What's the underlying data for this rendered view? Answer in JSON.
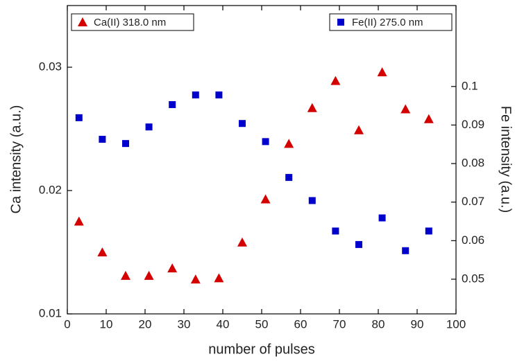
{
  "chart_data": {
    "type": "scatter",
    "xlabel": "number of pulses",
    "ylabel": "Ca intensity (a.u.)",
    "y2label": "Fe intensity (a.u.)",
    "x": [
      3,
      9,
      15,
      21,
      27,
      33,
      39,
      45,
      51,
      57,
      63,
      69,
      75,
      81,
      87,
      93
    ],
    "series": [
      {
        "name": "Ca(II) 318.0 nm",
        "color": "#d40000",
        "marker": "triangle",
        "axis": "y",
        "values": [
          0.0175,
          0.015,
          0.0131,
          0.0131,
          0.0137,
          0.0128,
          0.0129,
          0.0158,
          0.0193,
          0.0238,
          0.0267,
          0.0289,
          0.0249,
          0.0296,
          0.0266,
          0.0258
        ]
      },
      {
        "name": "Fe(II) 275.0 nm",
        "color": "#0000cc",
        "marker": "square",
        "axis": "y2",
        "values": [
          0.0919,
          0.0863,
          0.0852,
          0.0895,
          0.0953,
          0.0978,
          0.0978,
          0.0904,
          0.0857,
          0.0764,
          0.0704,
          0.0625,
          0.059,
          0.0659,
          0.0574,
          0.0625
        ]
      }
    ],
    "xlim": [
      0,
      100
    ],
    "xticks": [
      0,
      10,
      20,
      30,
      40,
      50,
      60,
      70,
      80,
      90,
      100
    ],
    "ylim": [
      0.01,
      0.035
    ],
    "yticks": [
      0.01,
      0.02,
      0.03
    ],
    "y2lim": [
      0.041,
      0.121
    ],
    "y2ticks": [
      0.05,
      0.06,
      0.07,
      0.08,
      0.09,
      0.1
    ]
  }
}
